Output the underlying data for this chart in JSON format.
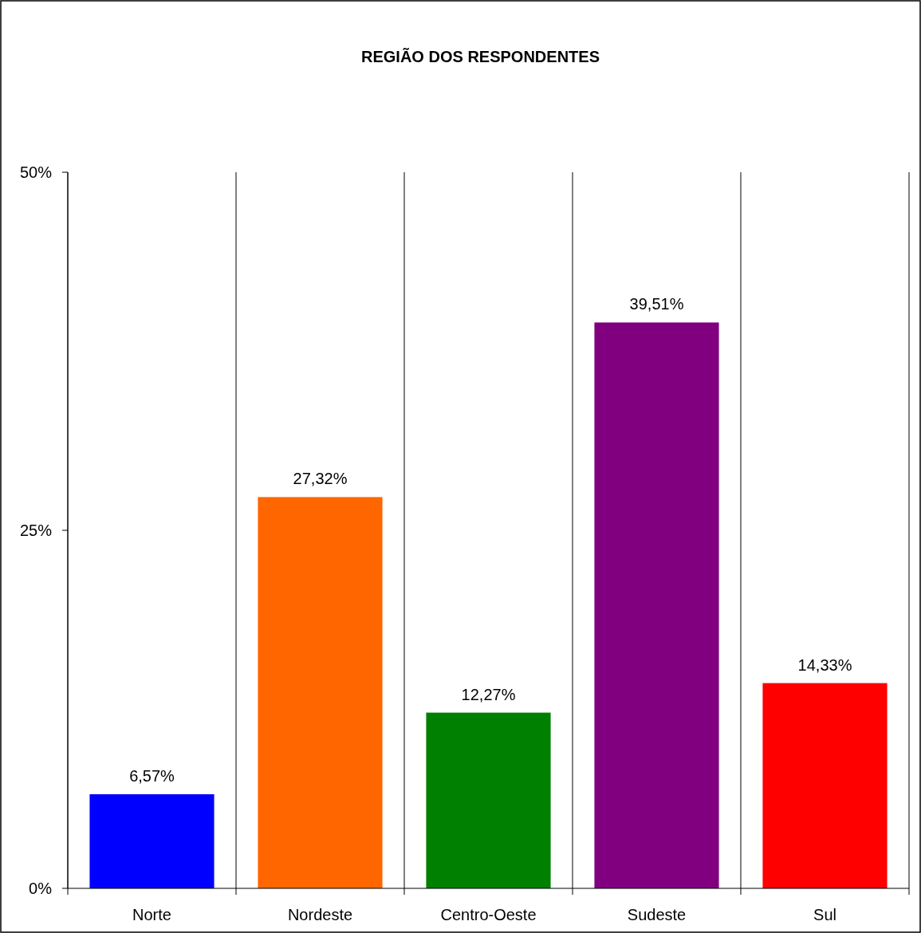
{
  "chart_data": {
    "type": "bar",
    "title": "REGIÃO DOS RESPONDENTES",
    "categories": [
      "Norte",
      "Nordeste",
      "Centro-Oeste",
      "Sudeste",
      "Sul"
    ],
    "values": [
      6.57,
      27.32,
      12.27,
      39.51,
      14.33
    ],
    "colors": [
      "#0000ff",
      "#ff6600",
      "#008000",
      "#800080",
      "#ff0000"
    ],
    "value_labels": [
      "6,57%",
      "27,32%",
      "12,27%",
      "39,51%",
      "14,33%"
    ],
    "ylim": [
      0,
      50
    ],
    "yticks": [
      {
        "value": 0,
        "label": "0%"
      },
      {
        "value": 25,
        "label": "25%"
      },
      {
        "value": 50,
        "label": "50%"
      }
    ],
    "grid": "x"
  }
}
